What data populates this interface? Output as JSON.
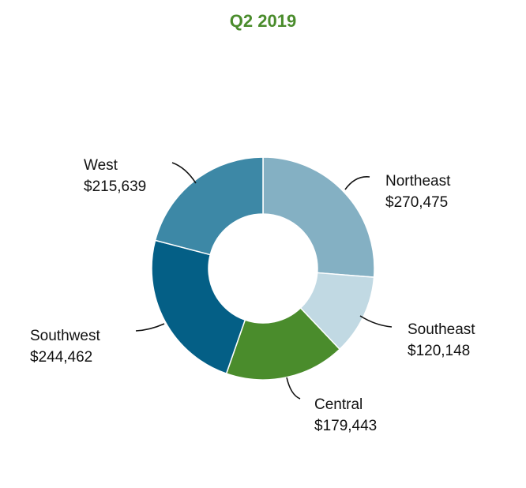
{
  "chart_data": {
    "type": "pie",
    "subtype": "donut",
    "title": "Q2 2019",
    "categories": [
      "Northeast",
      "Southeast",
      "Central",
      "Southwest",
      "West"
    ],
    "values": [
      270475,
      120148,
      179443,
      244462,
      215639
    ],
    "value_labels": [
      "$270,475",
      "$120,148",
      "$179,443",
      "$244,462",
      "$215,639"
    ],
    "colors": [
      "#84b0c3",
      "#c1d9e3",
      "#4a8c2c",
      "#045f86",
      "#3d88a6"
    ],
    "title_color": "#4a8c2c",
    "legend": "none",
    "start": "top",
    "direction": "clockwise"
  }
}
